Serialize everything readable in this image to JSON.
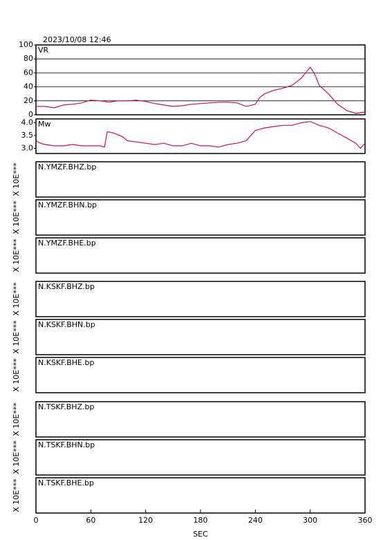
{
  "title": "2023/10/08 12:46",
  "x_axis": {
    "xlim": [
      0,
      360
    ],
    "xticks": [
      0,
      60,
      120,
      180,
      240,
      300,
      360
    ],
    "xlabel": "SEC"
  },
  "chart_data": [
    {
      "type": "line",
      "label": "VR",
      "color": "#d0104c",
      "grid": true,
      "ylim": [
        0,
        100
      ],
      "yticks": [
        0,
        20,
        40,
        60,
        80,
        100
      ],
      "xlim": [
        0,
        360
      ],
      "x": [
        0,
        10,
        20,
        30,
        40,
        50,
        60,
        70,
        80,
        90,
        100,
        110,
        120,
        130,
        140,
        150,
        160,
        170,
        180,
        190,
        200,
        210,
        220,
        230,
        240,
        245,
        250,
        260,
        270,
        280,
        290,
        295,
        300,
        305,
        310,
        320,
        330,
        340,
        350,
        360
      ],
      "values": [
        12,
        12,
        10,
        14,
        15,
        17,
        21,
        20,
        18,
        20,
        20,
        21,
        19,
        16,
        14,
        12,
        13,
        15,
        16,
        17,
        18,
        18,
        17,
        12,
        15,
        25,
        30,
        35,
        38,
        42,
        52,
        60,
        68,
        58,
        42,
        30,
        15,
        6,
        2,
        4
      ]
    },
    {
      "type": "line",
      "label": "Mw",
      "color": "#d0104c",
      "grid": false,
      "ylim": [
        2.8,
        4.15
      ],
      "yticks": [
        {
          "value": 3,
          "label": "3.0"
        },
        3.5,
        {
          "value": 4,
          "label": "4.0"
        }
      ],
      "xlim": [
        0,
        360
      ],
      "x": [
        0,
        5,
        10,
        20,
        30,
        40,
        50,
        60,
        70,
        75,
        78,
        85,
        95,
        100,
        110,
        120,
        130,
        140,
        150,
        160,
        170,
        180,
        190,
        200,
        210,
        220,
        230,
        240,
        250,
        260,
        270,
        280,
        290,
        300,
        310,
        320,
        330,
        340,
        350,
        355,
        360
      ],
      "values": [
        3.3,
        3.2,
        3.15,
        3.1,
        3.1,
        3.15,
        3.1,
        3.1,
        3.1,
        3.05,
        3.65,
        3.6,
        3.45,
        3.3,
        3.25,
        3.2,
        3.15,
        3.2,
        3.1,
        3.1,
        3.2,
        3.1,
        3.1,
        3.05,
        3.15,
        3.2,
        3.3,
        3.7,
        3.8,
        3.85,
        3.9,
        3.9,
        4.0,
        4.05,
        3.9,
        3.8,
        3.6,
        3.4,
        3.2,
        3.0,
        3.2
      ]
    },
    {
      "type": "waveform",
      "label": "N.YMZF.BHZ.bp",
      "ylabel": "X 10E***"
    },
    {
      "type": "waveform",
      "label": "N.YMZF.BHN.bp",
      "ylabel": "X 10E***"
    },
    {
      "type": "waveform",
      "label": "N.YMZF.BHE.bp",
      "ylabel": "X 10E***"
    },
    {
      "type": "waveform",
      "label": "N.KSKF.BHZ.bp",
      "ylabel": "X 10E***"
    },
    {
      "type": "waveform",
      "label": "N.KSKF.BHN.bp",
      "ylabel": "X 10E***"
    },
    {
      "type": "waveform",
      "label": "N.KSKF.BHE.bp",
      "ylabel": "X 10E***"
    },
    {
      "type": "waveform",
      "label": "N.TSKF.BHZ.bp",
      "ylabel": "X 10E***"
    },
    {
      "type": "waveform",
      "label": "N.TSKF.BHN.bp",
      "ylabel": "X 10E***"
    },
    {
      "type": "waveform",
      "label": "N.TSKF.BHE.bp",
      "ylabel": "X 10E***"
    }
  ]
}
